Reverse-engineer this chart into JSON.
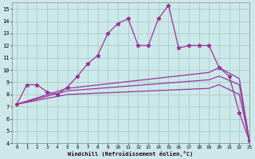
{
  "xlabel": "Windchill (Refroidissement éolien,°C)",
  "xlim": [
    -0.5,
    23
  ],
  "ylim": [
    4,
    15.5
  ],
  "background_color": "#cce8e8",
  "grid_color": "#aacccc",
  "line_color": "#993399",
  "line1": {
    "x": [
      0,
      1,
      2,
      3,
      4,
      5,
      6,
      7,
      8,
      9,
      10,
      11,
      12,
      13,
      14,
      15,
      16,
      17,
      18,
      19,
      20,
      21,
      22,
      23
    ],
    "y": [
      7.2,
      8.8,
      8.8,
      8.2,
      8.0,
      8.6,
      9.5,
      10.5,
      11.2,
      13.0,
      13.8,
      14.2,
      12.0,
      12.0,
      14.2,
      15.3,
      11.8,
      12.0,
      12.0,
      12.0,
      10.2,
      9.5,
      6.5,
      4.2
    ]
  },
  "line2": {
    "x": [
      0,
      5,
      19,
      20,
      22,
      23
    ],
    "y": [
      7.2,
      8.5,
      9.8,
      10.2,
      9.3,
      4.2
    ]
  },
  "line3": {
    "x": [
      0,
      5,
      19,
      20,
      22,
      23
    ],
    "y": [
      7.2,
      8.3,
      9.2,
      9.5,
      8.8,
      4.2
    ]
  },
  "line4": {
    "x": [
      0,
      5,
      19,
      20,
      22,
      23
    ],
    "y": [
      7.2,
      8.0,
      8.5,
      8.8,
      8.0,
      4.2
    ]
  },
  "yticks": [
    4,
    5,
    6,
    7,
    8,
    9,
    10,
    11,
    12,
    13,
    14,
    15
  ],
  "xticks": [
    0,
    1,
    2,
    3,
    4,
    5,
    6,
    7,
    8,
    9,
    10,
    11,
    12,
    13,
    14,
    15,
    16,
    17,
    18,
    19,
    20,
    21,
    22,
    23
  ]
}
